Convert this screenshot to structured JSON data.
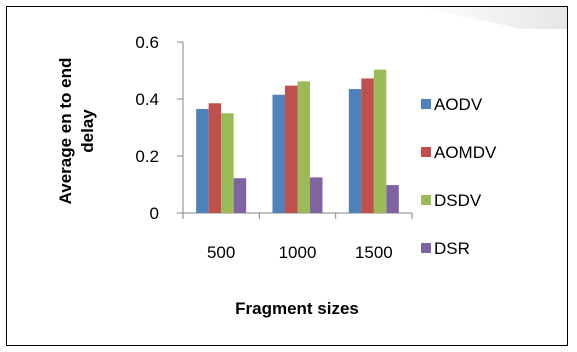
{
  "chart_data": {
    "type": "bar",
    "categories": [
      "500",
      "1000",
      "1500"
    ],
    "series": [
      {
        "name": "AODV",
        "color": "#4F81BD",
        "values": [
          0.365,
          0.415,
          0.435
        ]
      },
      {
        "name": "AOMDV",
        "color": "#C0504D",
        "values": [
          0.385,
          0.447,
          0.472
        ]
      },
      {
        "name": "DSDV",
        "color": "#9BBB59",
        "values": [
          0.35,
          0.462,
          0.503
        ]
      },
      {
        "name": "DSR",
        "color": "#8064A2",
        "values": [
          0.122,
          0.125,
          0.098
        ]
      }
    ],
    "ylabel_lines": [
      "Average en to end",
      "delay"
    ],
    "xlabel": "Fragment sizes",
    "ylim": [
      0,
      0.6
    ],
    "yticks": [
      "0",
      "0.2",
      "0.4",
      "0.6"
    ],
    "grid": false,
    "legend_position": "right"
  }
}
